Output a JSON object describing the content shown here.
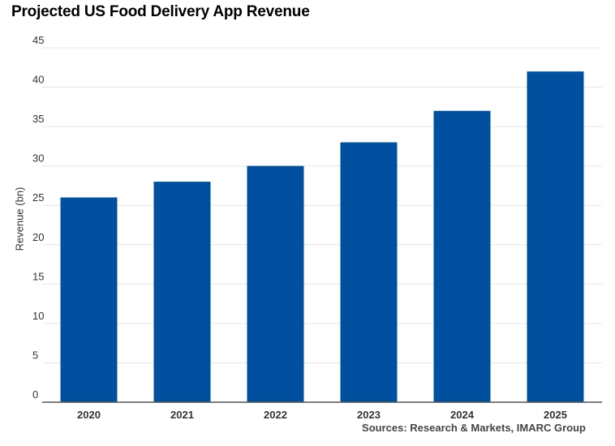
{
  "chart_data": {
    "type": "bar",
    "title": "Projected US Food Delivery App Revenue",
    "xlabel": "",
    "ylabel": "Revenue (bn)",
    "categories": [
      "2020",
      "2021",
      "2022",
      "2023",
      "2024",
      "2025"
    ],
    "values": [
      26,
      28,
      30,
      33,
      37,
      42
    ],
    "ylim": [
      0,
      45
    ],
    "yticks": [
      0,
      5,
      10,
      15,
      20,
      25,
      30,
      35,
      40,
      45
    ],
    "grid": true,
    "legend": "none",
    "bar_color": "#0050A0",
    "source": "Sources: Research & Markets, IMARC Group"
  }
}
